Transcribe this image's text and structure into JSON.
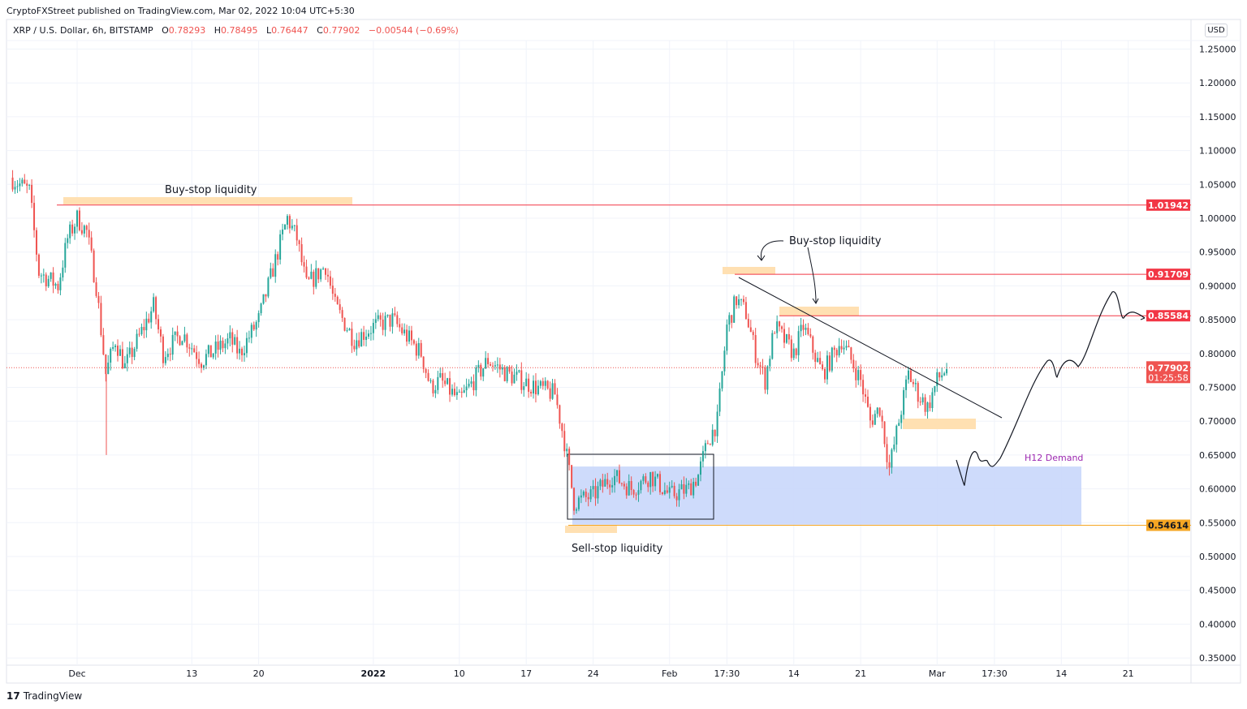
{
  "publisher": "CryptoFXStreet published on TradingView.com, Mar 02, 2022 10:04 UTC+5:30",
  "legend": {
    "symbol": "XRP / U.S. Dollar, 6h, BITSTAMP",
    "o_label": "O",
    "o": "0.78293",
    "h_label": "H",
    "h": "0.78495",
    "l_label": "L",
    "l": "0.76447",
    "c_label": "C",
    "c": "0.77902",
    "change": "−0.00544 (−0.69%)"
  },
  "currency_button": "USD",
  "brand": "TradingView",
  "colors": {
    "up": "#26a69a",
    "down": "#ef5350",
    "level": "#f23645",
    "zone": "#ffe0b2",
    "demand": "#c9d7fb",
    "support": "#f5a623",
    "demand_label": "#9c27b0"
  },
  "chart_data": {
    "type": "candlestick",
    "symbol": "XRP/USD",
    "interval": "6h",
    "ylim": [
      0.33,
      1.28
    ],
    "y_ticks": [
      "1.25000",
      "1.20000",
      "1.15000",
      "1.10000",
      "1.05000",
      "1.00000",
      "0.95000",
      "0.90000",
      "0.85000",
      "0.80000",
      "0.75000",
      "0.70000",
      "0.65000",
      "0.60000",
      "0.55000",
      "0.50000",
      "0.45000",
      "0.40000",
      "0.35000"
    ],
    "x_ticks": [
      {
        "label": "Dec",
        "date": "2021-12-01"
      },
      {
        "label": "13",
        "date": "2021-12-13"
      },
      {
        "label": "20",
        "date": "2021-12-20"
      },
      {
        "label": "2022",
        "date": "2022-01-01",
        "bold": true
      },
      {
        "label": "10",
        "date": "2022-01-10"
      },
      {
        "label": "17",
        "date": "2022-01-17"
      },
      {
        "label": "24",
        "date": "2022-01-24"
      },
      {
        "label": "Feb",
        "date": "2022-02-01"
      },
      {
        "label": "17:30",
        "date": "2022-02-07"
      },
      {
        "label": "14",
        "date": "2022-02-14"
      },
      {
        "label": "21",
        "date": "2022-02-21"
      },
      {
        "label": "Mar",
        "date": "2022-03-01"
      },
      {
        "label": "17:30",
        "date": "2022-03-07"
      },
      {
        "label": "14",
        "date": "2022-03-14"
      },
      {
        "label": "21",
        "date": "2022-03-21"
      }
    ],
    "price_path": [
      [
        "2021-11-24",
        1.06
      ],
      [
        "2021-11-26",
        1.04
      ],
      [
        "2021-11-27",
        0.92
      ],
      [
        "2021-11-29",
        0.9
      ],
      [
        "2021-11-30",
        0.97
      ],
      [
        "2021-12-01",
        1.0
      ],
      [
        "2021-12-02",
        0.98
      ],
      [
        "2021-12-03",
        0.9
      ],
      [
        "2021-12-04",
        0.77
      ],
      [
        "2021-12-05",
        0.82
      ],
      [
        "2021-12-06",
        0.78
      ],
      [
        "2021-12-09",
        0.87
      ],
      [
        "2021-12-10",
        0.8
      ],
      [
        "2021-12-12",
        0.83
      ],
      [
        "2021-12-14",
        0.79
      ],
      [
        "2021-12-17",
        0.82
      ],
      [
        "2021-12-18",
        0.8
      ],
      [
        "2021-12-20",
        0.85
      ],
      [
        "2021-12-22",
        0.95
      ],
      [
        "2021-12-23",
        1.0
      ],
      [
        "2021-12-24",
        0.97
      ],
      [
        "2021-12-25",
        0.9
      ],
      [
        "2021-12-27",
        0.93
      ],
      [
        "2021-12-28",
        0.87
      ],
      [
        "2021-12-30",
        0.82
      ],
      [
        "2022-01-01",
        0.84
      ],
      [
        "2022-01-03",
        0.85
      ],
      [
        "2022-01-06",
        0.8
      ],
      [
        "2022-01-07",
        0.75
      ],
      [
        "2022-01-08",
        0.76
      ],
      [
        "2022-01-10",
        0.73
      ],
      [
        "2022-01-13",
        0.79
      ],
      [
        "2022-01-15",
        0.77
      ],
      [
        "2022-01-18",
        0.75
      ],
      [
        "2022-01-20",
        0.74
      ],
      [
        "2022-01-21",
        0.67
      ],
      [
        "2022-01-22",
        0.58
      ],
      [
        "2022-01-24",
        0.59
      ],
      [
        "2022-01-26",
        0.62
      ],
      [
        "2022-01-28",
        0.6
      ],
      [
        "2022-01-30",
        0.62
      ],
      [
        "2022-02-01",
        0.59
      ],
      [
        "2022-02-03",
        0.6
      ],
      [
        "2022-02-04",
        0.62
      ],
      [
        "2022-02-05",
        0.67
      ],
      [
        "2022-02-06",
        0.7
      ],
      [
        "2022-02-07",
        0.84
      ],
      [
        "2022-02-08",
        0.88
      ],
      [
        "2022-02-09",
        0.86
      ],
      [
        "2022-02-10",
        0.8
      ],
      [
        "2022-02-11",
        0.76
      ],
      [
        "2022-02-12",
        0.84
      ],
      [
        "2022-02-14",
        0.8
      ],
      [
        "2022-02-15",
        0.84
      ],
      [
        "2022-02-17",
        0.77
      ],
      [
        "2022-02-19",
        0.82
      ],
      [
        "2022-02-21",
        0.76
      ],
      [
        "2022-02-22",
        0.7
      ],
      [
        "2022-02-23",
        0.72
      ],
      [
        "2022-02-24",
        0.63
      ],
      [
        "2022-02-25",
        0.7
      ],
      [
        "2022-02-26",
        0.77
      ],
      [
        "2022-02-27",
        0.74
      ],
      [
        "2022-02-28",
        0.72
      ],
      [
        "2022-03-01",
        0.76
      ],
      [
        "2022-03-02",
        0.779
      ]
    ],
    "levels": [
      {
        "price": 1.01942,
        "label": "1.01942"
      },
      {
        "price": 0.91709,
        "label": "0.91709"
      },
      {
        "price": 0.85584,
        "label": "0.85584"
      },
      {
        "price": 0.54614,
        "label": "0.54614"
      }
    ],
    "last_price": {
      "label": "0.77902",
      "countdown": "01:25:58"
    },
    "annotations": {
      "buy_stop_1": "Buy-stop liquidity",
      "buy_stop_2": "Buy-stop liquidity",
      "sell_stop": "Sell-stop liquidity",
      "demand": "H12 Demand"
    }
  }
}
